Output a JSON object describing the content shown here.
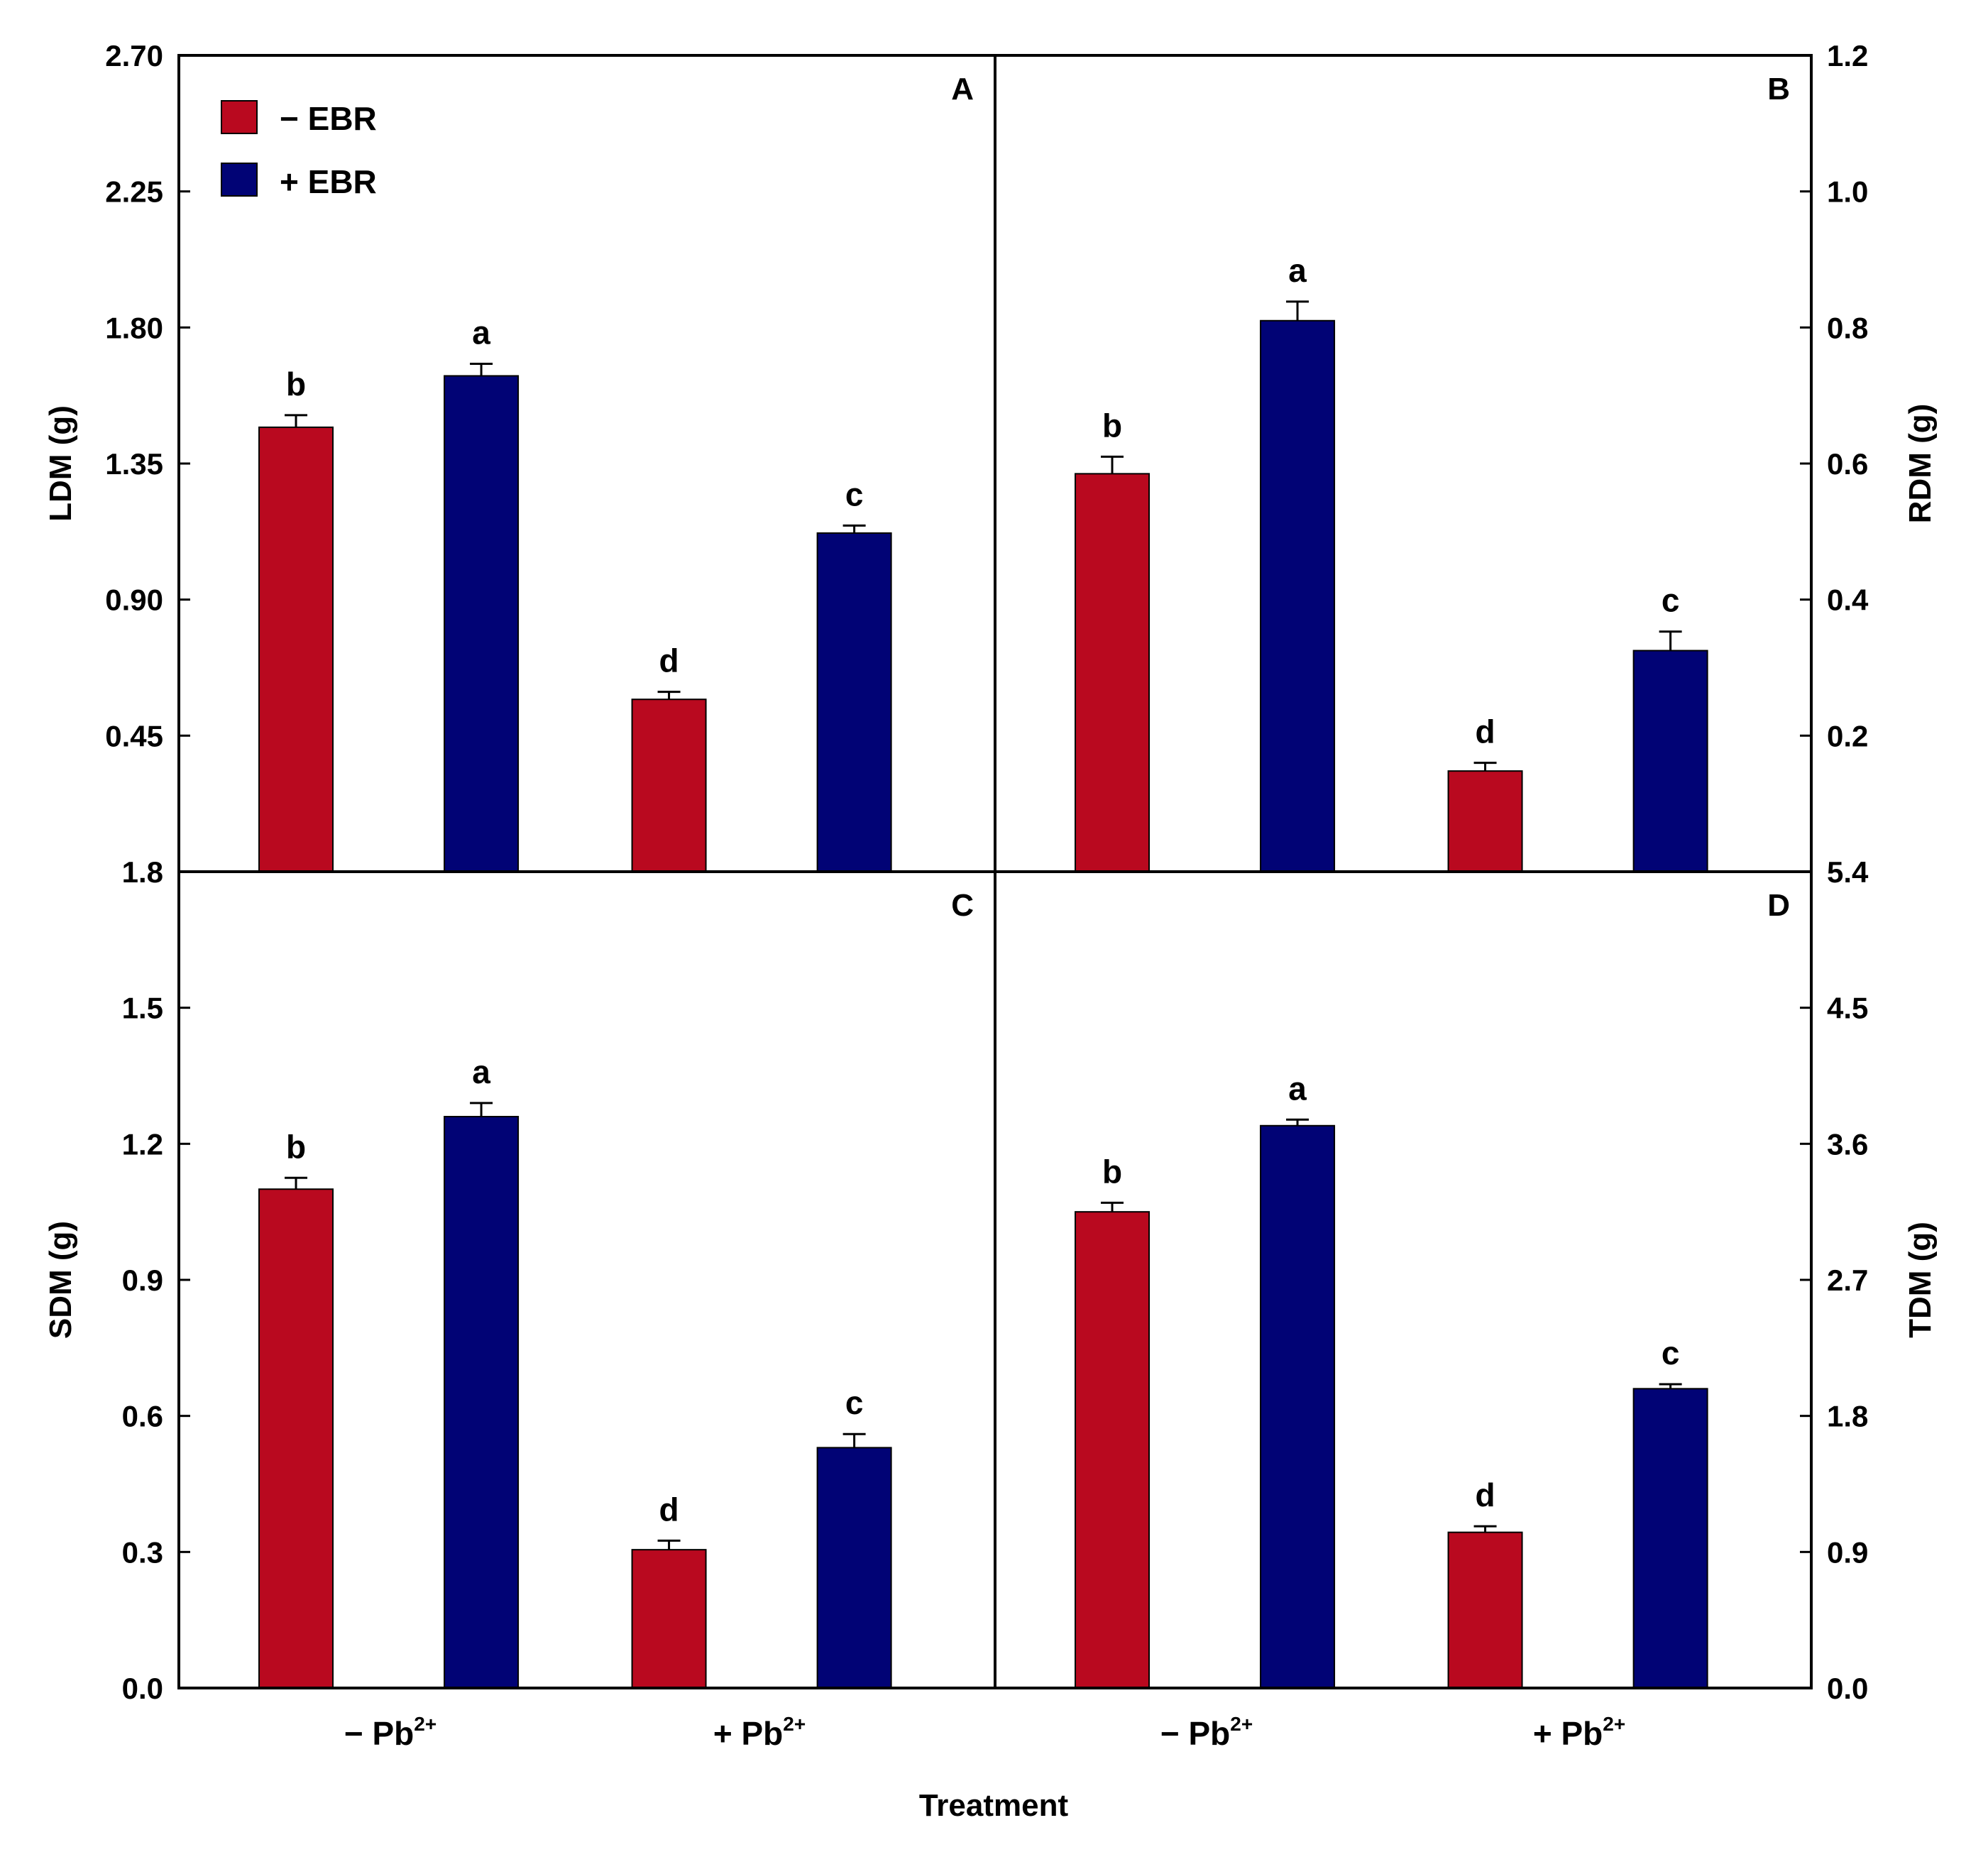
{
  "colors": {
    "minus_ebr": "#B9091F",
    "plus_ebr": "#010375",
    "axis": "#000000"
  },
  "legend": [
    {
      "label": "− EBR",
      "color": "#B9091F"
    },
    {
      "label": "+ EBR",
      "color": "#010375"
    }
  ],
  "x_title": "Treatment",
  "categories": [
    {
      "main": "− Pb",
      "sup": "2+"
    },
    {
      "main": "+ Pb",
      "sup": "2+"
    }
  ],
  "chart_data": [
    {
      "type": "bar",
      "panel": "A",
      "ylabel": "LDM (g)",
      "axis_side": "left",
      "ylim": [
        0,
        2.7
      ],
      "ticks": [
        "2.70",
        "2.25",
        "1.80",
        "1.35",
        "0.90",
        "0.45"
      ],
      "categories": [
        "− Pb2+",
        "+ Pb2+"
      ],
      "series": [
        {
          "name": "− EBR",
          "values": [
            1.47,
            0.57
          ],
          "errors": [
            0.04,
            0.025
          ],
          "letters": [
            "b",
            "d"
          ]
        },
        {
          "name": "+ EBR",
          "values": [
            1.64,
            1.12
          ],
          "errors": [
            0.04,
            0.025
          ],
          "letters": [
            "a",
            "c"
          ]
        }
      ]
    },
    {
      "type": "bar",
      "panel": "B",
      "ylabel": "RDM (g)",
      "axis_side": "right",
      "ylim": [
        0,
        1.2
      ],
      "ticks": [
        "1.2",
        "1.0",
        "0.8",
        "0.6",
        "0.4",
        "0.2"
      ],
      "categories": [
        "− Pb2+",
        "+ Pb2+"
      ],
      "series": [
        {
          "name": "− EBR",
          "values": [
            0.585,
            0.148
          ],
          "errors": [
            0.025,
            0.012
          ],
          "letters": [
            "b",
            "d"
          ]
        },
        {
          "name": "+ EBR",
          "values": [
            0.81,
            0.325
          ],
          "errors": [
            0.028,
            0.028
          ],
          "letters": [
            "a",
            "c"
          ]
        }
      ]
    },
    {
      "type": "bar",
      "panel": "C",
      "ylabel": "SDM (g)",
      "axis_side": "left",
      "ylim": [
        0,
        1.8
      ],
      "ticks": [
        "1.8",
        "1.5",
        "1.2",
        "0.9",
        "0.6",
        "0.3",
        "0.0"
      ],
      "categories": [
        "− Pb2+",
        "+ Pb2+"
      ],
      "series": [
        {
          "name": "− EBR",
          "values": [
            1.1,
            0.305
          ],
          "errors": [
            0.025,
            0.02
          ],
          "letters": [
            "b",
            "d"
          ]
        },
        {
          "name": "+ EBR",
          "values": [
            1.26,
            0.53
          ],
          "errors": [
            0.03,
            0.03
          ],
          "letters": [
            "a",
            "c"
          ]
        }
      ]
    },
    {
      "type": "bar",
      "panel": "D",
      "ylabel": "TDM (g)",
      "axis_side": "right",
      "ylim": [
        0,
        5.4
      ],
      "ticks": [
        "5.4",
        "4.5",
        "3.6",
        "2.7",
        "1.8",
        "0.9",
        "0.0"
      ],
      "categories": [
        "− Pb2+",
        "+ Pb2+"
      ],
      "series": [
        {
          "name": "− EBR",
          "values": [
            3.15,
            1.03
          ],
          "errors": [
            0.06,
            0.04
          ],
          "letters": [
            "b",
            "d"
          ]
        },
        {
          "name": "+ EBR",
          "values": [
            3.72,
            1.98
          ],
          "errors": [
            0.04,
            0.03
          ],
          "letters": [
            "a",
            "c"
          ]
        }
      ]
    }
  ]
}
